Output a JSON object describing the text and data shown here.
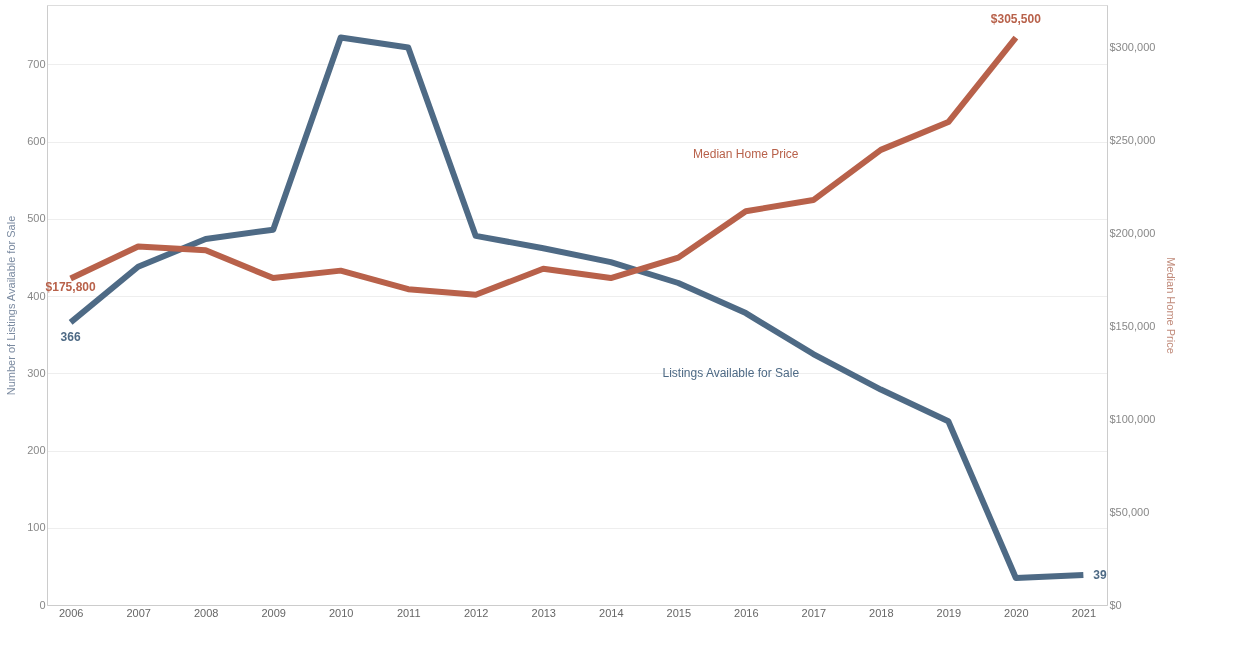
{
  "chart_data": {
    "type": "line",
    "categories": [
      "2006",
      "2007",
      "2008",
      "2009",
      "2010",
      "2011",
      "2012",
      "2013",
      "2014",
      "2015",
      "2016",
      "2017",
      "2018",
      "2019",
      "2020",
      "2021"
    ],
    "ylabel": "Number of Listings Available for Sale",
    "y2label": "Median Home Price",
    "series": [
      {
        "name": "Listings Available for Sale",
        "color": "#4e6a85",
        "values": [
          366,
          438,
          474,
          486,
          735,
          722,
          478,
          462,
          444,
          417,
          378,
          325,
          279,
          238,
          35,
          39
        ],
        "value_labels": [
          "366",
          null,
          null,
          null,
          null,
          null,
          null,
          null,
          null,
          null,
          null,
          null,
          null,
          null,
          null,
          "39"
        ]
      },
      {
        "name": "Median Home Price",
        "color": "#b8614a",
        "axis": "y2",
        "values": [
          175800,
          193000,
          191000,
          176000,
          180000,
          170000,
          167000,
          181000,
          176000,
          187000,
          212000,
          218000,
          245000,
          260000,
          305500,
          null
        ],
        "value_labels": [
          "$175,800",
          null,
          null,
          null,
          null,
          null,
          null,
          null,
          null,
          null,
          null,
          null,
          null,
          null,
          "$305,500",
          null
        ]
      }
    ],
    "ylim": [
      0,
      777
    ],
    "yticks": [
      0,
      100,
      200,
      300,
      400,
      500,
      600,
      700
    ],
    "y2lim": [
      0,
      323000
    ],
    "y2ticks": [
      {
        "value": 0,
        "label": "$0"
      },
      {
        "value": 50000,
        "label": "$50,000"
      },
      {
        "value": 100000,
        "label": "$100,000"
      },
      {
        "value": 150000,
        "label": "$150,000"
      },
      {
        "value": 200000,
        "label": "$200,000"
      },
      {
        "value": 250000,
        "label": "$250,000"
      },
      {
        "value": 300000,
        "label": "$300,000"
      }
    ],
    "grid": "y",
    "marker": "none",
    "line_style": "solid"
  }
}
